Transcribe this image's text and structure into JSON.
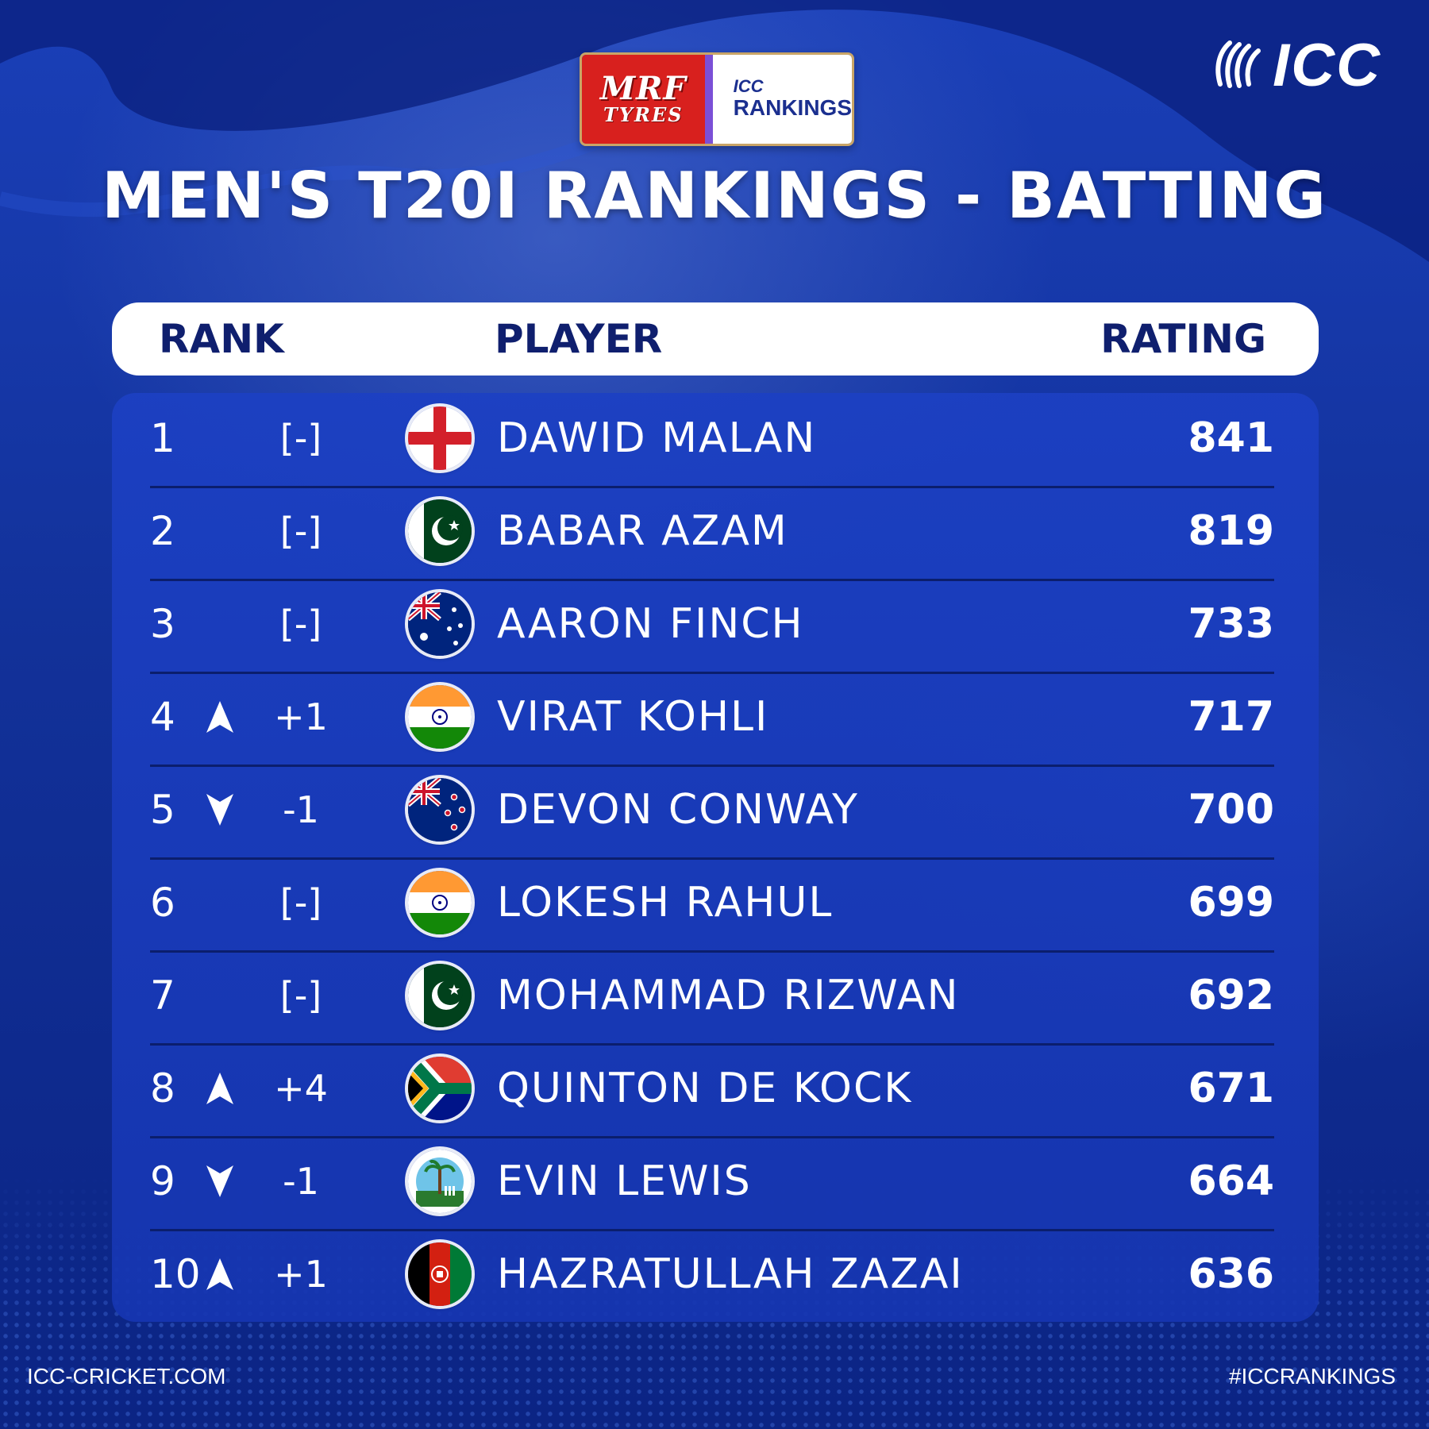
{
  "badge": {
    "sponsor_line1": "MRF",
    "sponsor_line2": "TYRES",
    "icc_small": "ICC",
    "rankings": "RANKINGS"
  },
  "logo": {
    "text": "ICC",
    "icon": "icc-ball-icon"
  },
  "title": "MEN'S T20I RANKINGS - BATTING",
  "header": {
    "rank": "RANK",
    "player": "PLAYER",
    "rating": "RATING"
  },
  "rows": [
    {
      "rank": "1",
      "movement": "[-]",
      "arrow": "none",
      "flag": "england-flag-icon",
      "player": "DAWID MALAN",
      "rating": "841"
    },
    {
      "rank": "2",
      "movement": "[-]",
      "arrow": "none",
      "flag": "pakistan-flag-icon",
      "player": "BABAR AZAM",
      "rating": "819"
    },
    {
      "rank": "3",
      "movement": "[-]",
      "arrow": "none",
      "flag": "australia-flag-icon",
      "player": "AARON FINCH",
      "rating": "733"
    },
    {
      "rank": "4",
      "movement": "+1",
      "arrow": "up",
      "flag": "india-flag-icon",
      "player": "VIRAT KOHLI",
      "rating": "717"
    },
    {
      "rank": "5",
      "movement": "-1",
      "arrow": "down",
      "flag": "new-zealand-flag-icon",
      "player": "DEVON CONWAY",
      "rating": "700"
    },
    {
      "rank": "6",
      "movement": "[-]",
      "arrow": "none",
      "flag": "india-flag-icon",
      "player": "LOKESH RAHUL",
      "rating": "699"
    },
    {
      "rank": "7",
      "movement": "[-]",
      "arrow": "none",
      "flag": "pakistan-flag-icon",
      "player": "MOHAMMAD RIZWAN",
      "rating": "692"
    },
    {
      "rank": "8",
      "movement": "+4",
      "arrow": "up",
      "flag": "south-africa-flag-icon",
      "player": "QUINTON DE KOCK",
      "rating": "671"
    },
    {
      "rank": "9",
      "movement": "-1",
      "arrow": "down",
      "flag": "west-indies-flag-icon",
      "player": "EVIN LEWIS",
      "rating": "664"
    },
    {
      "rank": "10",
      "movement": "+1",
      "arrow": "up",
      "flag": "afghanistan-flag-icon",
      "player": "HAZRATULLAH ZAZAI",
      "rating": "636"
    }
  ],
  "footer": {
    "website": "ICC-CRICKET.COM",
    "hashtag": "#ICCRANKINGS"
  },
  "colors": {
    "background": "#123199",
    "panel": "#1c40c3",
    "header_text": "#0f1f6e",
    "text": "#ffffff",
    "sponsor_red": "#d8201e"
  }
}
